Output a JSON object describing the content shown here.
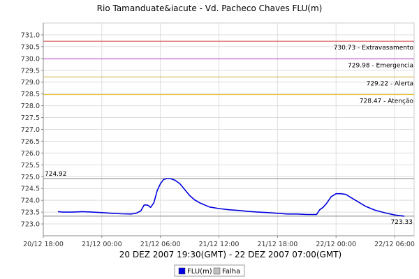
{
  "chart_data": {
    "type": "line",
    "title": "Rio Tamanduate&iacute - Vd. Pacheco Chaves FLU(m)",
    "x_caption": "20 DEZ 2007 19:30(GMT) - 22 DEZ 2007 07:00(GMT)",
    "x_range": [
      "20/12 18:00",
      "22/12 08:00"
    ],
    "x_ticks": [
      "20/12 18:00",
      "21/12 00:00",
      "21/12 06:00",
      "21/12 12:00",
      "21/12 18:00",
      "22/12 00:00",
      "22/12 06:00"
    ],
    "ylim": [
      722.5,
      731.5
    ],
    "y_ticks": [
      "723.0",
      "723.5",
      "724.0",
      "724.5",
      "725.0",
      "725.5",
      "726.0",
      "726.5",
      "727.0",
      "727.5",
      "728.0",
      "728.5",
      "729.0",
      "729.5",
      "730.0",
      "730.5",
      "731.0"
    ],
    "grid": true,
    "reference_lines": [
      {
        "label": "730.73 - Extravasamento",
        "value": 730.73,
        "color": "#d04040"
      },
      {
        "label": "729.98 - Emergencia",
        "value": 729.98,
        "color": "#c040d0"
      },
      {
        "label": "729.22 - Alerta",
        "value": 729.22,
        "color": "#d0b040"
      },
      {
        "label": "728.47 - Atenção",
        "value": 728.47,
        "color": "#e8c020"
      }
    ],
    "marker_lines": [
      {
        "label": "724.92",
        "value": 724.92,
        "color": "#808080",
        "label_side": "left"
      },
      {
        "label": "723.33",
        "value": 723.33,
        "color": "#808080",
        "label_side": "right"
      }
    ],
    "series": [
      {
        "name": "FLU(m)",
        "color": "#0000e0",
        "points": [
          [
            "20/12 19:30",
            723.52
          ],
          [
            "20/12 20:00",
            723.5
          ],
          [
            "20/12 21:00",
            723.5
          ],
          [
            "20/12 22:00",
            723.52
          ],
          [
            "20/12 23:00",
            723.5
          ],
          [
            "21/12 00:00",
            723.48
          ],
          [
            "21/12 01:00",
            723.45
          ],
          [
            "21/12 02:00",
            723.43
          ],
          [
            "21/12 03:00",
            723.42
          ],
          [
            "21/12 03:30",
            723.45
          ],
          [
            "21/12 04:00",
            723.55
          ],
          [
            "21/12 04:20",
            723.8
          ],
          [
            "21/12 04:40",
            723.8
          ],
          [
            "21/12 05:00",
            723.7
          ],
          [
            "21/12 05:20",
            723.9
          ],
          [
            "21/12 05:40",
            724.4
          ],
          [
            "21/12 06:00",
            724.7
          ],
          [
            "21/12 06:20",
            724.88
          ],
          [
            "21/12 06:40",
            724.92
          ],
          [
            "21/12 07:00",
            724.92
          ],
          [
            "21/12 07:30",
            724.85
          ],
          [
            "21/12 08:00",
            724.7
          ],
          [
            "21/12 08:30",
            724.45
          ],
          [
            "21/12 09:00",
            724.2
          ],
          [
            "21/12 09:30",
            724.02
          ],
          [
            "21/12 10:00",
            723.9
          ],
          [
            "21/12 11:00",
            723.72
          ],
          [
            "21/12 12:00",
            723.65
          ],
          [
            "21/12 13:00",
            723.6
          ],
          [
            "21/12 14:00",
            723.57
          ],
          [
            "21/12 15:00",
            723.53
          ],
          [
            "21/12 16:00",
            723.5
          ],
          [
            "21/12 17:00",
            723.48
          ],
          [
            "21/12 18:00",
            723.45
          ],
          [
            "21/12 19:00",
            723.42
          ],
          [
            "21/12 20:00",
            723.42
          ],
          [
            "21/12 21:00",
            723.4
          ],
          [
            "21/12 22:00",
            723.4
          ],
          [
            "21/12 22:20",
            723.6
          ],
          [
            "21/12 22:40",
            723.7
          ],
          [
            "21/12 23:00",
            723.85
          ],
          [
            "21/12 23:30",
            724.15
          ],
          [
            "22/12 00:00",
            724.28
          ],
          [
            "22/12 00:30",
            724.28
          ],
          [
            "22/12 01:00",
            724.25
          ],
          [
            "22/12 01:30",
            724.12
          ],
          [
            "22/12 02:00",
            724.0
          ],
          [
            "22/12 03:00",
            723.75
          ],
          [
            "22/12 04:00",
            723.58
          ],
          [
            "22/12 05:00",
            723.47
          ],
          [
            "22/12 06:00",
            723.38
          ],
          [
            "22/12 07:00",
            723.33
          ]
        ]
      }
    ],
    "legend": [
      {
        "name": "FLU(m)",
        "color": "#0000e0"
      },
      {
        "name": "Falha",
        "color": "#c0c0c0"
      }
    ],
    "legend_position": "bottom-center"
  }
}
